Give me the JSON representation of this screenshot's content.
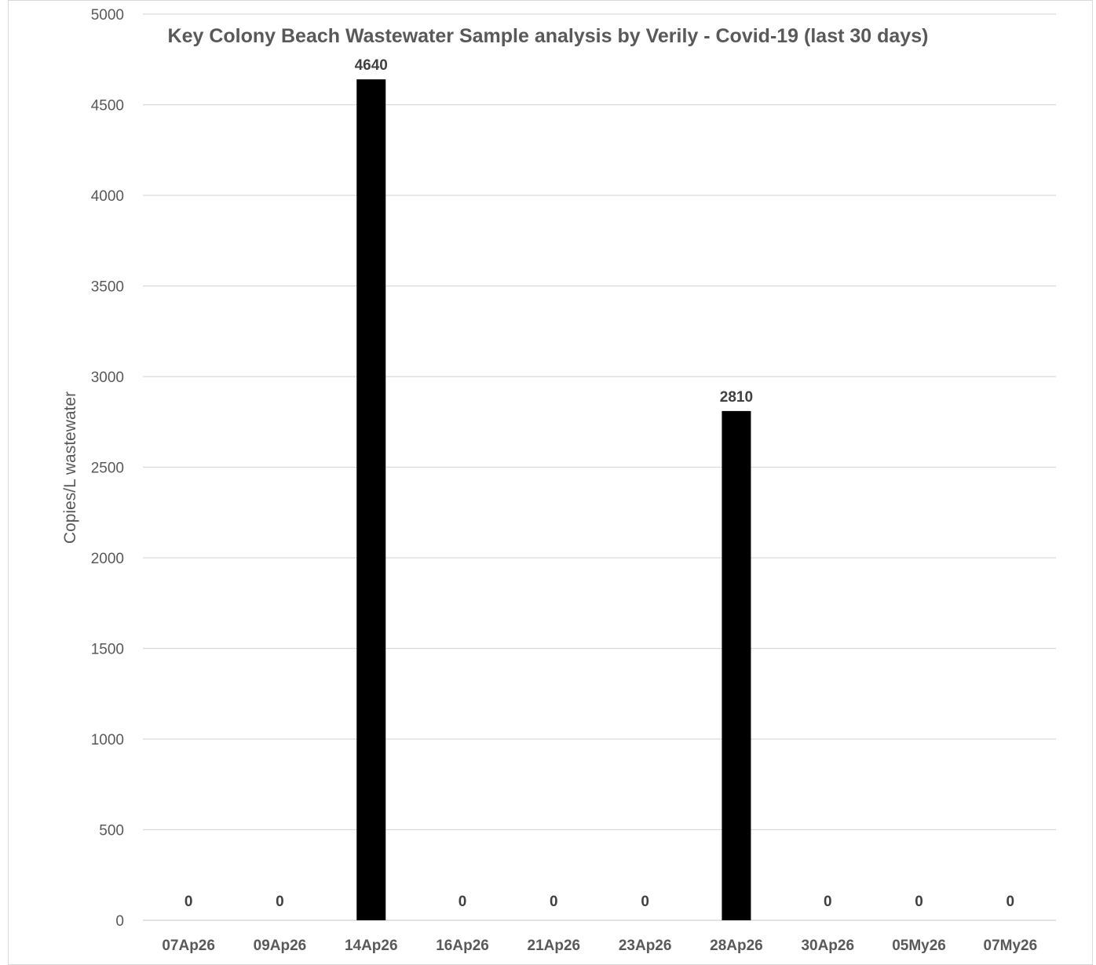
{
  "chart_data": {
    "type": "bar",
    "title": "Key Colony Beach Wastewater Sample analysis by Verily - Covid-19 (last 30 days)",
    "xlabel": "",
    "ylabel": "Copies/L wastewater",
    "categories": [
      "07Ap26",
      "09Ap26",
      "14Ap26",
      "16Ap26",
      "21Ap26",
      "23Ap26",
      "28Ap26",
      "30Ap26",
      "05My26",
      "07My26"
    ],
    "values": [
      0,
      0,
      4640,
      0,
      0,
      0,
      2810,
      0,
      0,
      0
    ],
    "data_labels": [
      "0",
      "0",
      "4640",
      "0",
      "0",
      "0",
      "2810",
      "0",
      "0",
      "0"
    ],
    "ylim": [
      0,
      5000
    ],
    "yticks": [
      0,
      500,
      1000,
      1500,
      2000,
      2500,
      3000,
      3500,
      4000,
      4500,
      5000
    ],
    "grid": true,
    "legend": "none",
    "bar_color": "#000000",
    "grid_color": "#d9d9d9"
  }
}
